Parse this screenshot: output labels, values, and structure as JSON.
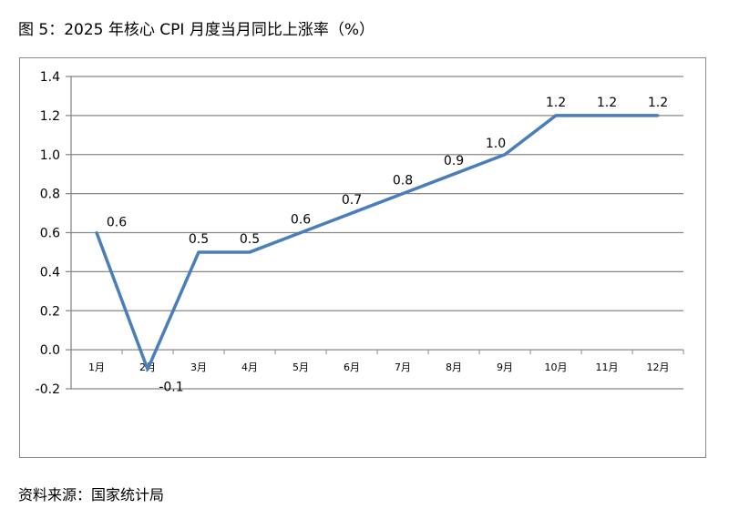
{
  "title": "图 5：2025 年核心 CPI 月度当月同比上涨率（%）",
  "source": "资料来源：国家统计局",
  "chart_data": {
    "type": "line",
    "title": "图 5：2025 年核心 CPI 月度当月同比上涨率（%）",
    "categories": [
      "1月",
      "2月",
      "3月",
      "4月",
      "5月",
      "6月",
      "7月",
      "8月",
      "9月",
      "10月",
      "11月",
      "12月"
    ],
    "series": [
      {
        "values": [
          0.6,
          -0.1,
          0.5,
          0.5,
          0.6,
          0.7,
          0.8,
          0.9,
          1.0,
          1.2,
          1.2,
          1.2
        ]
      }
    ],
    "data_labels": [
      "0.6",
      "-0.1",
      "0.5",
      "0.5",
      "0.6",
      "0.7",
      "0.8",
      "0.9",
      "1.0",
      "1.2",
      "1.2",
      "1.2"
    ],
    "ylim": [
      -0.2,
      1.4
    ],
    "yticks": [
      "-0.2",
      "0.0",
      "0.2",
      "0.4",
      "0.6",
      "0.8",
      "1.0",
      "1.2",
      "1.4"
    ],
    "grid": true,
    "line_color": "#4a7ebb",
    "grid_color": "#888888"
  }
}
